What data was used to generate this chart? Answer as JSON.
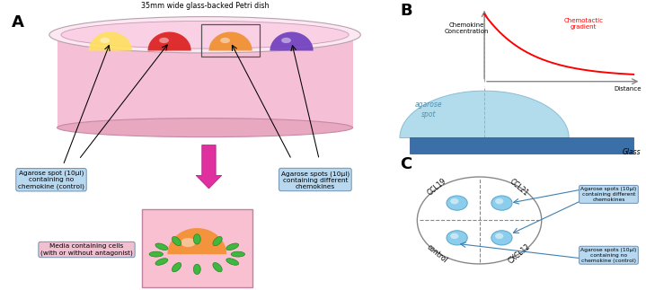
{
  "panel_A_label": "A",
  "panel_B_label": "B",
  "panel_C_label": "C",
  "petri_label": "35mm wide glass-backed Petri dish",
  "spot_label_left": "Agarose spot (10μl)\ncontaining no\nchemokine (control)",
  "spot_label_right": "Agarose spots (10μl)\ncontaining different\nchemokines",
  "media_label": "Media containing cells\n(with or without antagonist)",
  "chemokine_label": "Chemokine\nConcentration",
  "chemotactic_label": "Chemotactic\ngradient",
  "distance_label": "Distance",
  "glass_label": "Glass",
  "agarose_spot_label": "agarose\nspot",
  "anno_diff_chem": "Agarose spots (10μl)\ncontaining different\nchemokines",
  "anno_no_chem": "Agarose spots (10μl)\ncontaining no\nchemokine (control)",
  "ccl19": "CCL19",
  "ccl21": "CCL21",
  "cxcl12": "CXCL12",
  "control": "control"
}
